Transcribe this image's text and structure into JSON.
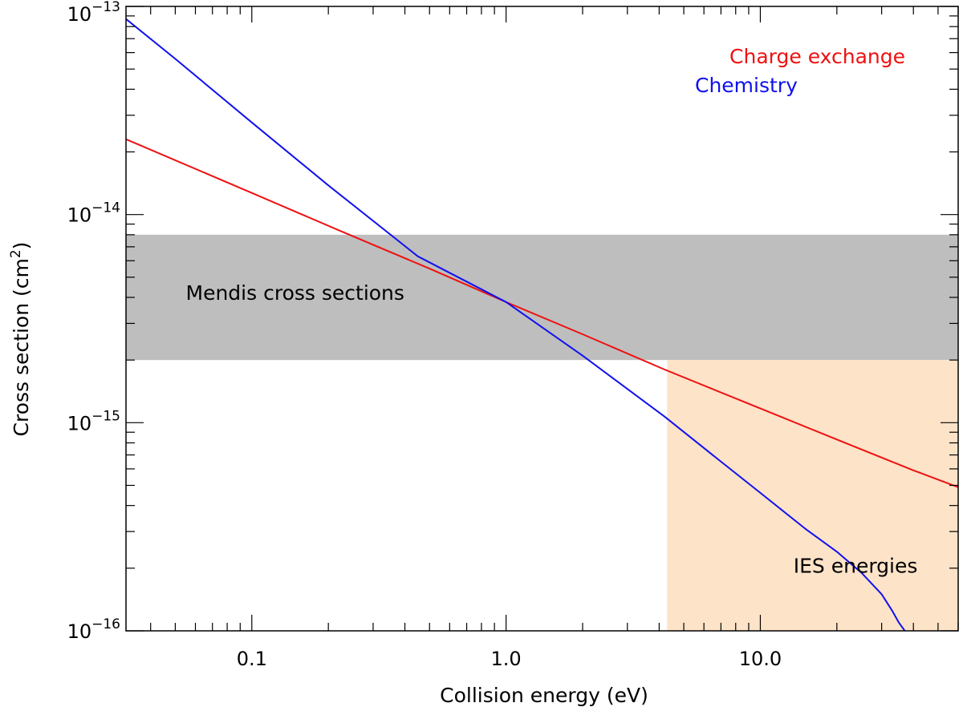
{
  "chart_data": {
    "type": "line",
    "title": "",
    "xlabel": "Collision energy (eV)",
    "ylabel_prefix": "Cross section (cm",
    "ylabel_sup": "2",
    "ylabel_suffix": ")",
    "x_scale": "log",
    "y_scale": "log",
    "xlim": [
      0.032,
      60
    ],
    "ylim": [
      1e-16,
      1e-13
    ],
    "x_ticks": [
      {
        "value": 0.1,
        "label": "0.1"
      },
      {
        "value": 1.0,
        "label": "1.0"
      },
      {
        "value": 10.0,
        "label": "10.0"
      }
    ],
    "y_ticks": [
      {
        "value": 1e-16,
        "base": "10",
        "exp": "−16"
      },
      {
        "value": 1e-15,
        "base": "10",
        "exp": "−15"
      },
      {
        "value": 1e-14,
        "base": "10",
        "exp": "−14"
      },
      {
        "value": 1e-13,
        "base": "10",
        "exp": "−13"
      }
    ],
    "series": [
      {
        "name": "Charge exchange",
        "color": "#ee1111",
        "x": [
          0.032,
          0.1,
          0.22,
          0.5,
          1.0,
          2.0,
          4.2,
          10.0,
          20.0,
          40.0,
          60.0
        ],
        "y": [
          2.3e-14,
          1.27e-14,
          8.4e-15,
          5.5e-15,
          3.8e-15,
          2.66e-15,
          1.8e-15,
          1.17e-15,
          8.3e-16,
          5.9e-16,
          4.9e-16
        ]
      },
      {
        "name": "Chemistry",
        "color": "#1111ee",
        "x": [
          0.032,
          0.05,
          0.1,
          0.2,
          0.45,
          1.0,
          2.0,
          4.2,
          7.0,
          10.0,
          15.0,
          20.0,
          25.0,
          30.0,
          33.0,
          35.0,
          37.0
        ],
        "y": [
          8.7e-14,
          5.6e-14,
          2.77e-14,
          1.38e-14,
          6.3e-15,
          3.8e-15,
          2.1e-15,
          1.07e-15,
          6.5e-16,
          4.6e-16,
          3.1e-16,
          2.4e-16,
          1.9e-16,
          1.5e-16,
          1.25e-16,
          1.1e-16,
          1e-16
        ]
      }
    ],
    "regions": [
      {
        "name": "Mendis cross sections",
        "color": "#bebebe",
        "x": [
          0.032,
          60
        ],
        "y": [
          2e-15,
          8e-15
        ],
        "label_x": 0.055,
        "label_y": 3.9e-15
      },
      {
        "name": "IES energies",
        "color": "#fde3c8",
        "x": [
          4.3,
          60
        ],
        "y": [
          1e-16,
          2e-15
        ],
        "label_x": 13.5,
        "label_y": 1.9e-16
      }
    ],
    "legend_placement": "top-right"
  }
}
